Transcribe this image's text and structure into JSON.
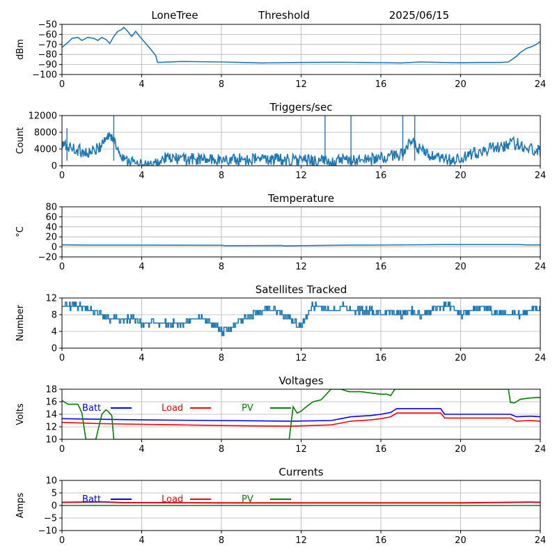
{
  "header": {
    "site": "LoneTree",
    "mode": "Threshold",
    "date": "2025/06/15"
  },
  "colors": {
    "series": "#1f77b4",
    "grid": "#b0b0b0",
    "batt": "#0000ff",
    "load": "#ff0000",
    "pv": "#008000"
  },
  "chart_data": [
    {
      "type": "line",
      "title": "",
      "xlabel": "",
      "ylabel": "dBm",
      "xlim": [
        0,
        24
      ],
      "ylim": [
        -100,
        -50
      ],
      "xticks": [
        "0",
        "4",
        "8",
        "12",
        "16",
        "20",
        "24"
      ],
      "yticks": [
        "−100",
        "−90",
        "−80",
        "−70",
        "−60",
        "−50"
      ],
      "ytick_values": [
        -100,
        -90,
        -80,
        -70,
        -60,
        -50
      ],
      "grid": true,
      "series": [
        {
          "name": "",
          "color": "#1f77b4",
          "noise": 0,
          "x": [
            0,
            0.3,
            0.5,
            0.8,
            1.0,
            1.3,
            1.6,
            1.8,
            2.0,
            2.2,
            2.4,
            2.6,
            2.8,
            3.0,
            3.1,
            3.3,
            3.5,
            3.7,
            3.9,
            4.2,
            4.5,
            4.7,
            4.8,
            6,
            8,
            9,
            10,
            12,
            14,
            15,
            16,
            17,
            18,
            19,
            20,
            21,
            22,
            22.4,
            22.8,
            23.0,
            23.3,
            23.6,
            23.8,
            24
          ],
          "y": [
            -73,
            -68,
            -64,
            -63,
            -66,
            -63,
            -64,
            -66,
            -63,
            -65,
            -69,
            -62,
            -57,
            -55,
            -53,
            -57,
            -62,
            -57,
            -62,
            -69,
            -76,
            -81,
            -88,
            -87,
            -87.5,
            -88,
            -88.5,
            -88,
            -87.8,
            -88,
            -88.2,
            -88.5,
            -87.5,
            -88,
            -88.3,
            -88,
            -88,
            -87.5,
            -82,
            -78,
            -74,
            -72,
            -70,
            -67
          ]
        }
      ]
    },
    {
      "type": "line",
      "title": "Triggers/sec",
      "xlabel": "",
      "ylabel": "Count",
      "xlim": [
        0,
        24
      ],
      "ylim": [
        0,
        12000
      ],
      "xticks": [
        "0",
        "4",
        "8",
        "12",
        "16",
        "20",
        "24"
      ],
      "yticks": [
        "0",
        "4000",
        "8000",
        "12000"
      ],
      "ytick_values": [
        0,
        4000,
        8000,
        12000
      ],
      "grid": true,
      "series": [
        {
          "name": "",
          "color": "#1f77b4",
          "noise": 1500,
          "x": [
            0,
            0.3,
            0.6,
            1.0,
            1.4,
            1.8,
            2.1,
            2.4,
            2.7,
            3.0,
            3.3,
            3.6,
            3.8,
            4.0,
            4.3,
            4.6,
            4.8,
            5.2,
            6,
            7,
            8,
            9,
            10,
            11,
            12,
            12.5,
            13,
            13.5,
            14,
            14.5,
            15,
            15.5,
            16,
            16.5,
            17,
            17.3,
            17.6,
            17.9,
            18.2,
            18.6,
            19,
            19.5,
            20,
            20.5,
            21,
            21.5,
            22,
            22.5,
            23,
            23.5,
            24
          ],
          "y": [
            5000,
            4500,
            4000,
            3500,
            3000,
            4000,
            6000,
            7500,
            5000,
            2500,
            1500,
            800,
            200,
            0,
            0,
            0,
            500,
            1800,
            1600,
            1500,
            1400,
            1500,
            1600,
            1500,
            1300,
            1200,
            1100,
            1000,
            1200,
            1300,
            1400,
            1600,
            1800,
            2200,
            2800,
            4500,
            5500,
            4000,
            3000,
            2000,
            1500,
            1300,
            1500,
            2500,
            3500,
            4000,
            4500,
            5500,
            5000,
            4000,
            3500
          ]
        }
      ],
      "spikes": [
        [
          13.2,
          12500
        ],
        [
          14.5,
          12000
        ],
        [
          17.1,
          12300
        ],
        [
          17.7,
          12000
        ],
        [
          2.6,
          12500
        ],
        [
          0.25,
          9000
        ]
      ]
    },
    {
      "type": "line",
      "title": "Temperature",
      "xlabel": "",
      "ylabel": "°C",
      "xlim": [
        0,
        24
      ],
      "ylim": [
        -20,
        80
      ],
      "xticks": [
        "0",
        "4",
        "8",
        "12",
        "16",
        "20",
        "24"
      ],
      "yticks": [
        "−20",
        "0",
        "20",
        "40",
        "60",
        "80"
      ],
      "ytick_values": [
        -20,
        0,
        20,
        40,
        60,
        80
      ],
      "grid": true,
      "series": [
        {
          "name": "",
          "color": "#1f77b4",
          "noise": 0,
          "x": [
            0,
            1.5,
            4,
            8,
            8.2,
            11,
            11.2,
            12,
            14.5,
            16,
            19,
            20,
            23,
            23.3,
            24
          ],
          "y": [
            4,
            3.5,
            3.5,
            3.2,
            2.5,
            2.8,
            2,
            2.5,
            3.5,
            3.6,
            4.5,
            4.5,
            4.5,
            3.8,
            3.8
          ]
        }
      ]
    },
    {
      "type": "line",
      "title": "Satellites Tracked",
      "xlabel": "",
      "ylabel": "Number",
      "xlim": [
        0,
        24
      ],
      "ylim": [
        0,
        12
      ],
      "xticks": [
        "0",
        "4",
        "8",
        "12",
        "16",
        "20",
        "24"
      ],
      "yticks": [
        "0",
        "4",
        "8",
        "12"
      ],
      "ytick_values": [
        0,
        4,
        8,
        12
      ],
      "grid": true,
      "series": [
        {
          "name": "",
          "color": "#1f77b4",
          "noise": 0.8,
          "step": true,
          "x": [
            0,
            0.5,
            1,
            1.5,
            2,
            2.5,
            3,
            3.5,
            4,
            4.5,
            5,
            5.5,
            6,
            6.5,
            7,
            7.5,
            8,
            8.5,
            9,
            9.5,
            10,
            10.5,
            11,
            11.5,
            12,
            12.5,
            13,
            13.5,
            14,
            14.5,
            15,
            15.5,
            16,
            16.5,
            17,
            17.5,
            18,
            18.5,
            19,
            19.5,
            20,
            20.5,
            21,
            21.5,
            22,
            22.5,
            23,
            23.5,
            24
          ],
          "y": [
            10,
            10,
            10,
            9,
            8,
            7,
            7,
            7,
            6,
            6,
            6,
            6,
            6,
            7,
            7,
            6,
            4,
            5,
            7,
            8,
            9,
            10,
            8,
            7,
            5,
            10,
            10,
            9,
            10,
            9,
            9,
            9,
            8,
            9,
            8,
            9,
            8,
            9,
            10,
            10,
            8,
            9,
            10,
            9,
            8,
            8,
            8,
            9,
            10
          ]
        }
      ]
    },
    {
      "type": "line",
      "title": "Voltages",
      "xlabel": "",
      "ylabel": "Volts",
      "xlim": [
        0,
        24
      ],
      "ylim": [
        10,
        18
      ],
      "xticks": [
        "0",
        "4",
        "8",
        "12",
        "16",
        "20",
        "24"
      ],
      "yticks": [
        "10",
        "12",
        "14",
        "16",
        "18"
      ],
      "ytick_values": [
        10,
        12,
        14,
        16,
        18
      ],
      "grid": true,
      "legend": [
        "Batt",
        "Load",
        "PV"
      ],
      "series": [
        {
          "name": "Batt",
          "color": "#0000ff",
          "noise": 0,
          "x": [
            0,
            2,
            4,
            8,
            11.5,
            13.5,
            14,
            14.5,
            15.5,
            16,
            16.5,
            16.8,
            17,
            19,
            19.2,
            20,
            22.5,
            22.8,
            23.5,
            24
          ],
          "y": [
            13.3,
            13.2,
            13.1,
            13,
            12.9,
            13,
            13.3,
            13.6,
            13.8,
            14,
            14.3,
            14.9,
            14.9,
            14.9,
            14,
            14,
            14,
            13.6,
            13.7,
            13.6
          ]
        },
        {
          "name": "Load",
          "color": "#ff0000",
          "noise": 0,
          "x": [
            0,
            1,
            2,
            4,
            8,
            11.5,
            13.5,
            14,
            14.5,
            15.5,
            16,
            16.5,
            16.8,
            17,
            19,
            19.2,
            20,
            22.5,
            22.8,
            23.5,
            24
          ],
          "y": [
            12.7,
            12.6,
            12.5,
            12.4,
            12.2,
            12.1,
            12.3,
            12.6,
            12.9,
            13.1,
            13.3,
            13.6,
            14.2,
            14.2,
            14.2,
            13.4,
            13.4,
            13.4,
            12.9,
            13,
            12.9
          ]
        },
        {
          "name": "PV",
          "color": "#008000",
          "noise": 0,
          "x": [
            0,
            0.3,
            0.5,
            0.7,
            0.8,
            1.0,
            1.2,
            1.5,
            1.7,
            2.0,
            2.2,
            2.3,
            2.5,
            2.6,
            2.7,
            11.4,
            11.6,
            11.8,
            12,
            12.3,
            12.6,
            13,
            13.5,
            14,
            14.4,
            14.7,
            15,
            15.5,
            16,
            16.3,
            16.5,
            16.7,
            22.4,
            22.5,
            22.7,
            23,
            23.5,
            24
          ],
          "y": [
            16.2,
            15.6,
            15.6,
            15.6,
            15.6,
            14.2,
            10,
            10,
            10,
            14,
            14.7,
            14.5,
            13.8,
            10,
            10,
            10,
            15.2,
            14.2,
            14.5,
            15.3,
            16,
            16.3,
            18,
            18,
            17.6,
            17.6,
            17.6,
            17.4,
            17.2,
            17.2,
            17,
            18,
            18,
            15.9,
            15.8,
            16.4,
            16.6,
            16.7
          ]
        }
      ]
    },
    {
      "type": "line",
      "title": "Currents",
      "xlabel": "",
      "ylabel": "Amps",
      "xlim": [
        0,
        24
      ],
      "ylim": [
        -10,
        10
      ],
      "xticks": [
        "0",
        "4",
        "8",
        "12",
        "16",
        "20",
        "24"
      ],
      "yticks": [
        "−10",
        "−5",
        "0",
        "5",
        "10"
      ],
      "ytick_values": [
        -10,
        -5,
        0,
        5,
        10
      ],
      "grid": true,
      "legend": [
        "Batt",
        "Load",
        "PV"
      ],
      "series": [
        {
          "name": "Batt",
          "color": "#0000ff",
          "noise": 0,
          "x": [
            0,
            2,
            3,
            8,
            12,
            16,
            20,
            22.5,
            23.5,
            24
          ],
          "y": [
            1.2,
            1.4,
            1.1,
            1.0,
            1.0,
            1.0,
            1.0,
            1.2,
            1.3,
            1.2
          ]
        },
        {
          "name": "Load",
          "color": "#ff0000",
          "noise": 0,
          "x": [
            0,
            2,
            3,
            8,
            12,
            16,
            20,
            22.5,
            23.5,
            24
          ],
          "y": [
            1.3,
            1.5,
            1.2,
            1.1,
            1.1,
            1.1,
            1.1,
            1.3,
            1.4,
            1.3
          ]
        },
        {
          "name": "PV",
          "color": "#008000",
          "noise": 0,
          "x": [
            0,
            24
          ],
          "y": [
            0,
            0
          ]
        }
      ]
    }
  ]
}
